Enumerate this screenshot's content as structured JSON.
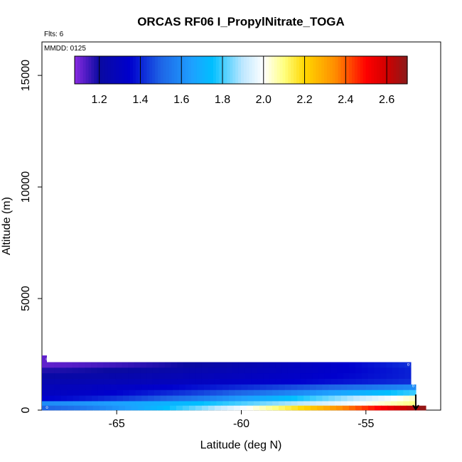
{
  "chart_data": {
    "type": "heatmap",
    "title": "ORCAS RF06 I_PropylNitrate_TOGA",
    "annotations": {
      "flights": "Flts: 6",
      "date": "MMDD: 0125"
    },
    "xlabel": "Latitude (deg N)",
    "ylabel": "Altitude (m)",
    "xlim": [
      -68.0,
      -52.0
    ],
    "ylim": [
      0,
      16500
    ],
    "x_ticks": [
      -65,
      -60,
      -55
    ],
    "x_tick_labels": [
      "-65",
      "-60",
      "-55"
    ],
    "y_ticks": [
      0,
      5000,
      10000,
      15000
    ],
    "y_tick_labels": [
      "0",
      "5000",
      "10000",
      "15000"
    ],
    "colorbar": {
      "range": [
        1.08,
        2.7
      ],
      "ticks": [
        1.2,
        1.4,
        1.6,
        1.8,
        2.0,
        2.2,
        2.4,
        2.6
      ],
      "tick_labels": [
        "1.2",
        "1.4",
        "1.6",
        "1.8",
        "2.0",
        "2.2",
        "2.4",
        "2.6"
      ],
      "color_stops": [
        {
          "value": 1.08,
          "color": "#8a2be2"
        },
        {
          "value": 1.2,
          "color": "#0a0aa0"
        },
        {
          "value": 1.35,
          "color": "#0000cd"
        },
        {
          "value": 1.5,
          "color": "#1e64e6"
        },
        {
          "value": 1.65,
          "color": "#1ea0ff"
        },
        {
          "value": 1.75,
          "color": "#00bfff"
        },
        {
          "value": 1.9,
          "color": "#bfe8ff"
        },
        {
          "value": 2.0,
          "color": "#ffffff"
        },
        {
          "value": 2.1,
          "color": "#ffff80"
        },
        {
          "value": 2.2,
          "color": "#ffd700"
        },
        {
          "value": 2.35,
          "color": "#ff8c00"
        },
        {
          "value": 2.5,
          "color": "#ff0000"
        },
        {
          "value": 2.6,
          "color": "#d00000"
        },
        {
          "value": 2.7,
          "color": "#8b1a1a"
        }
      ]
    },
    "bands": [
      {
        "alt_min": 1900,
        "alt_max": 2150,
        "lat_min": -68.0,
        "lat_max": -53.2,
        "start_value": 1.12,
        "end_value": 1.42
      },
      {
        "alt_min": 1650,
        "alt_max": 1900,
        "lat_min": -68.0,
        "lat_max": -53.2,
        "start_value": 1.18,
        "end_value": 1.4
      },
      {
        "alt_min": 1400,
        "alt_max": 1650,
        "lat_min": -68.0,
        "lat_max": -53.2,
        "start_value": 1.22,
        "end_value": 1.4
      },
      {
        "alt_min": 1150,
        "alt_max": 1400,
        "lat_min": -68.0,
        "lat_max": -53.2,
        "start_value": 1.25,
        "end_value": 1.42
      },
      {
        "alt_min": 900,
        "alt_max": 1150,
        "lat_min": -68.0,
        "lat_max": -53.0,
        "start_value": 1.28,
        "end_value": 1.6
      },
      {
        "alt_min": 650,
        "alt_max": 900,
        "lat_min": -68.0,
        "lat_max": -53.0,
        "start_value": 1.3,
        "end_value": 1.8
      },
      {
        "alt_min": 400,
        "alt_max": 650,
        "lat_min": -68.0,
        "lat_max": -53.0,
        "start_value": 1.35,
        "end_value": 2.05
      },
      {
        "alt_min": 200,
        "alt_max": 400,
        "lat_min": -68.0,
        "lat_max": -53.0,
        "start_value": 1.6,
        "end_value": 2.1
      },
      {
        "alt_min": 0,
        "alt_max": 200,
        "lat_min": -68.0,
        "lat_max": -52.6,
        "start_value": 1.5,
        "end_value": 2.7
      }
    ],
    "edge_blocks": [
      {
        "alt_min": 2150,
        "alt_max": 2450,
        "lat_min": -68.0,
        "lat_max": -67.8,
        "value": 1.12
      }
    ],
    "markers": [
      {
        "lat": -67.8,
        "alt": 2300,
        "label": "o"
      },
      {
        "lat": -53.3,
        "alt": 2050,
        "label": "o"
      },
      {
        "lat": -53.1,
        "alt": 1100,
        "label": "o"
      },
      {
        "lat": -67.8,
        "alt": 120,
        "label": "o"
      }
    ],
    "descent_arrow": {
      "lat": -53.0,
      "alt_from": 700,
      "alt_to": 0
    }
  }
}
